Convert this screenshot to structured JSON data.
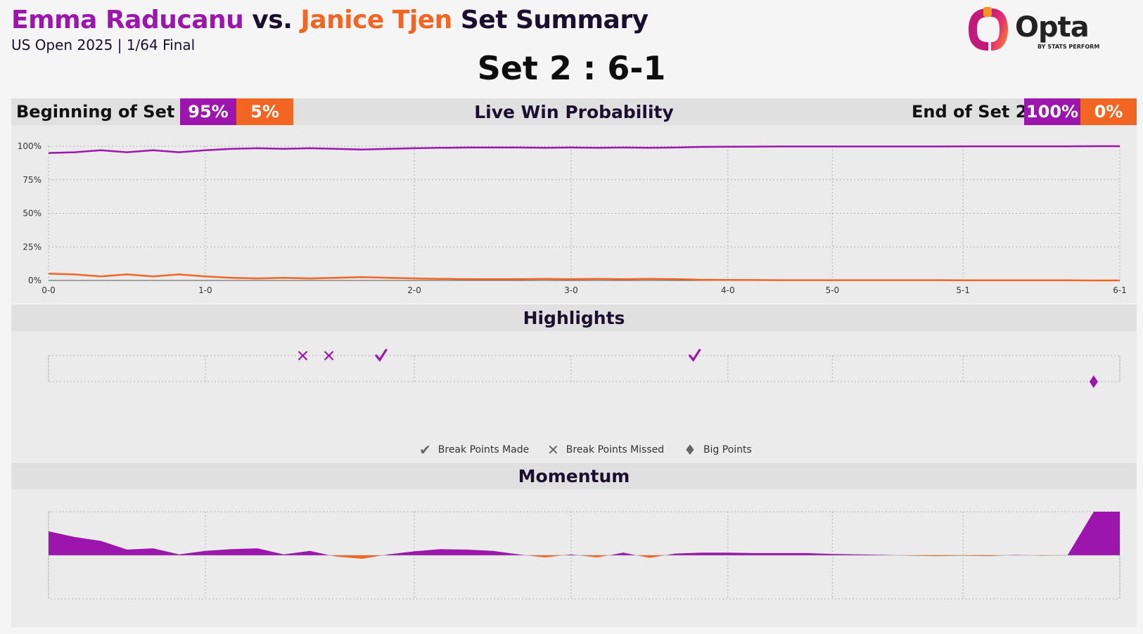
{
  "header": {
    "player1": "Emma Raducanu",
    "vs": "vs.",
    "player2": "Janice Tjen",
    "title_suffix": "Set Summary",
    "subtitle": "US Open 2025 | 1/64 Final",
    "set_score": "Set 2 : 6-1"
  },
  "logo": {
    "name": "Opta",
    "sub": "BY STATS PERFORM"
  },
  "colors": {
    "player1": "#9c16ad",
    "player2": "#f26522"
  },
  "win_prob_bar": {
    "title": "Live Win Probability",
    "begin_label": "Beginning of Set 2",
    "begin_p1": "95%",
    "begin_p2": "5%",
    "end_label": "End of Set 2",
    "end_p1": "100%",
    "end_p2": "0%"
  },
  "highlights_bar": {
    "title": "Highlights"
  },
  "momentum_bar": {
    "title": "Momentum"
  },
  "legend": {
    "break_made": "Break Points Made",
    "break_missed": "Break Points Missed",
    "big_points": "Big Points",
    "icons": [
      "checkmark-icon",
      "cross-icon",
      "diamond-icon"
    ]
  },
  "chart_data": [
    {
      "type": "line",
      "title": "Live Win Probability",
      "x_ticks": [
        "0-0",
        "1-0",
        "2-0",
        "3-0",
        "4-0",
        "5-0",
        "5-1",
        "6-1"
      ],
      "x_tick_points": [
        0,
        6,
        14,
        20,
        26,
        30,
        35,
        41
      ],
      "y_ticks": [
        "0%",
        "25%",
        "50%",
        "75%",
        "100%"
      ],
      "ylim": [
        0,
        100
      ],
      "series": [
        {
          "name": "Emma Raducanu",
          "values": [
            95,
            95.5,
            97,
            95.5,
            97,
            95.5,
            97,
            98,
            98.5,
            98,
            98.5,
            98,
            97.5,
            98,
            98.5,
            98.8,
            99,
            99,
            99,
            98.8,
            99,
            98.8,
            99,
            98.8,
            99,
            99.5,
            99.6,
            99.7,
            99.8,
            99.8,
            99.8,
            99.8,
            99.8,
            99.8,
            99.8,
            99.9,
            99.9,
            99.9,
            99.9,
            99.9,
            100,
            100
          ]
        },
        {
          "name": "Janice Tjen",
          "values": [
            5,
            4.5,
            3,
            4.5,
            3,
            4.5,
            3,
            2,
            1.5,
            2,
            1.5,
            2,
            2.5,
            2,
            1.5,
            1.2,
            1,
            1,
            1,
            1.2,
            1,
            1.2,
            1,
            1.2,
            1,
            0.5,
            0.4,
            0.3,
            0.2,
            0.2,
            0.2,
            0.2,
            0.2,
            0.2,
            0.2,
            0.1,
            0.1,
            0.1,
            0.1,
            0.1,
            0,
            0
          ]
        }
      ]
    },
    {
      "type": "scatter",
      "title": "Highlights",
      "points": [
        {
          "x": 10,
          "marker": "cross",
          "player": "Emma Raducanu",
          "row": 0
        },
        {
          "x": 11,
          "marker": "cross",
          "player": "Emma Raducanu",
          "row": 0
        },
        {
          "x": 13,
          "marker": "check",
          "player": "Emma Raducanu",
          "row": 0
        },
        {
          "x": 25,
          "marker": "check",
          "player": "Emma Raducanu",
          "row": 0
        },
        {
          "x": 40,
          "marker": "diamond",
          "player": "Emma Raducanu",
          "row": 1
        }
      ]
    },
    {
      "type": "area",
      "title": "Momentum",
      "ylim": [
        -1,
        1
      ],
      "values": [
        0.55,
        0.42,
        0.33,
        0.13,
        0.16,
        0.02,
        0.1,
        0.14,
        0.16,
        0.02,
        0.1,
        -0.03,
        -0.08,
        0.02,
        0.09,
        0.14,
        0.13,
        0.1,
        0.02,
        -0.05,
        0.02,
        -0.05,
        0.06,
        -0.06,
        0.04,
        0.06,
        0.06,
        0.05,
        0.05,
        0.05,
        0.03,
        0.02,
        0.01,
        -0.01,
        -0.02,
        -0.01,
        -0.02,
        0.01,
        -0.01,
        0.0,
        1.0,
        1.0
      ]
    }
  ]
}
